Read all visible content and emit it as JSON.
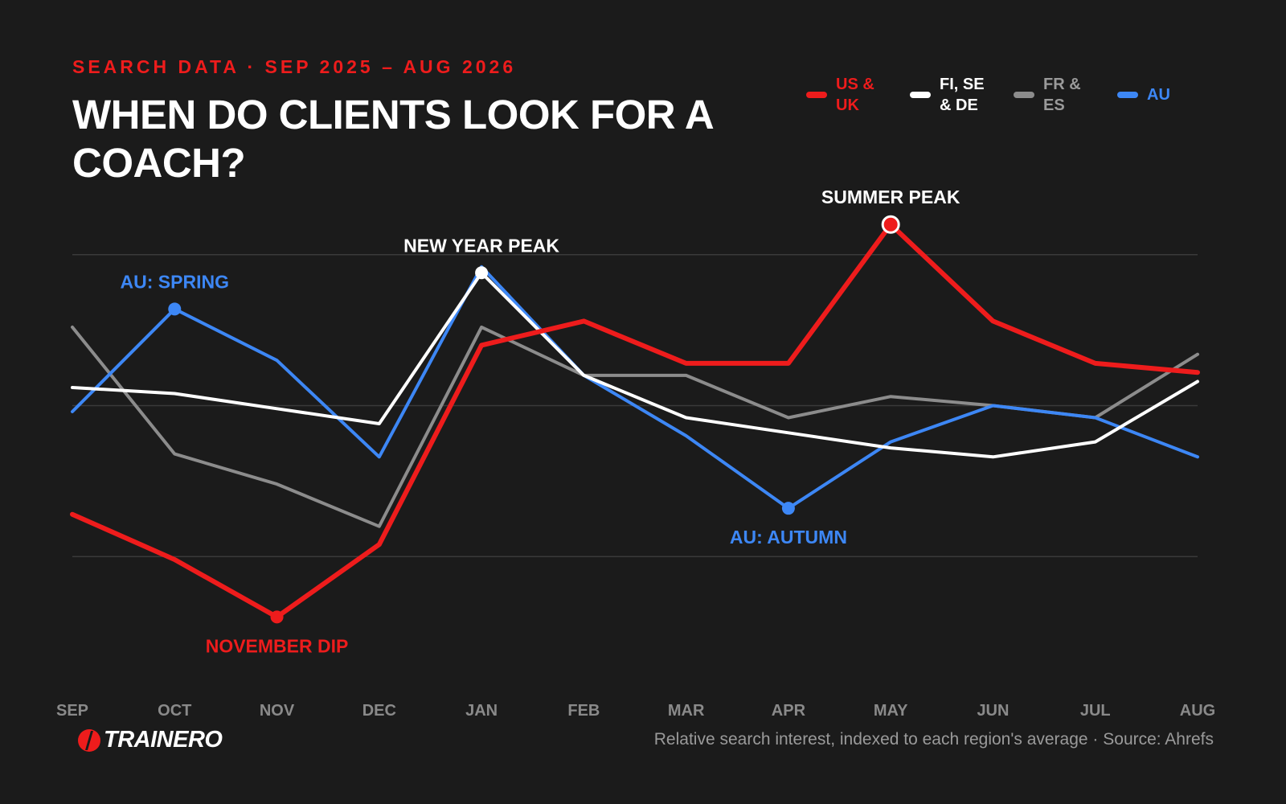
{
  "header": {
    "kicker": "SEARCH DATA · SEP 2025 – AUG 2026",
    "title": "WHEN DO CLIENTS LOOK FOR A COACH?"
  },
  "brand": {
    "name": "TRAINERO",
    "logo_icon": "trainero-logo-icon",
    "accent": "#ee1c1c"
  },
  "footer": {
    "source": "Relative search interest, indexed to each region's average · Source: Ahrefs"
  },
  "chart_data": {
    "type": "line",
    "categories": [
      "SEP",
      "OCT",
      "NOV",
      "DEC",
      "JAN",
      "FEB",
      "MAR",
      "APR",
      "MAY",
      "JUN",
      "JUL",
      "AUG"
    ],
    "ylim": [
      0,
      100
    ],
    "grid": true,
    "gridlines": [
      25,
      50,
      75
    ],
    "legend_position": "top-right",
    "series": [
      {
        "name": "US & UK",
        "color": "#ee1c1c",
        "values": [
          32,
          24.5,
          15,
          27,
          60,
          64,
          57,
          57,
          80,
          64,
          57,
          55.5
        ]
      },
      {
        "name": "FI, SE & DE",
        "color": "#ffffff",
        "values": [
          53,
          52,
          49.5,
          47,
          72,
          55,
          48,
          45.5,
          43,
          41.5,
          44,
          54
        ]
      },
      {
        "name": "FR & ES",
        "color": "#8c8c8c",
        "values": [
          63,
          42,
          37,
          30,
          63,
          55,
          55,
          48,
          51.5,
          50,
          48,
          58.5
        ]
      },
      {
        "name": "AU",
        "color": "#3d87f5",
        "values": [
          49,
          66,
          57.5,
          41.5,
          73,
          55,
          45,
          33,
          44,
          50,
          48,
          41.5
        ]
      }
    ],
    "annotations": [
      {
        "text": "AU: SPRING",
        "series": 3,
        "index": 1,
        "color": "#3d87f5",
        "position": "above",
        "marker": "filled"
      },
      {
        "text": "NEW YEAR PEAK",
        "series": 1,
        "index": 4,
        "color": "#ffffff",
        "position": "above",
        "marker": "filled"
      },
      {
        "text": "SUMMER PEAK",
        "series": 0,
        "index": 8,
        "color": "#ffffff",
        "position": "above",
        "marker": "ring"
      },
      {
        "text": "AU: AUTUMN",
        "series": 3,
        "index": 7,
        "color": "#3d87f5",
        "position": "below",
        "marker": "filled"
      },
      {
        "text": "NOVEMBER DIP",
        "series": 0,
        "index": 2,
        "color": "#ee1c1c",
        "position": "below",
        "marker": "filled"
      }
    ]
  }
}
